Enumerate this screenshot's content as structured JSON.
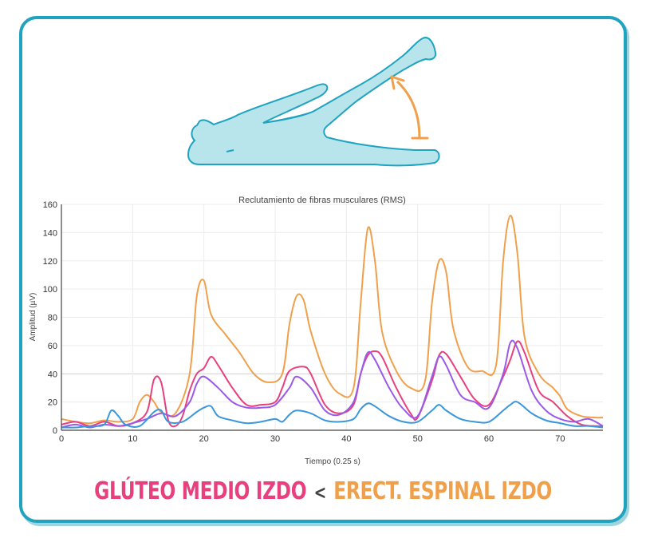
{
  "caption": {
    "left": "GLÚTEO MEDIO IZDO",
    "comparator": "<",
    "right": "ERECT. ESPINAL IZDO"
  },
  "illustration": {
    "icon": "side-lying-leg-raise-figure",
    "body_fill": "#b8e4ec",
    "body_stroke": "#1fa3bf",
    "arrow_color": "#f0a04b"
  },
  "chart_data": {
    "type": "line",
    "title": "Reclutamiento de fibras musculares (RMS)",
    "xlabel": "Tiempo (0.25 s)",
    "ylabel": "Amplitud (µV)",
    "xlim": [
      0,
      76
    ],
    "ylim": [
      0,
      160
    ],
    "xticks": [
      0,
      10,
      20,
      30,
      40,
      50,
      60,
      70
    ],
    "yticks": [
      0,
      20,
      40,
      60,
      80,
      100,
      120,
      140,
      160
    ],
    "grid": true,
    "series": [
      {
        "color": "#f0a04b",
        "points": [
          [
            0,
            8
          ],
          [
            2,
            6
          ],
          [
            4,
            5
          ],
          [
            6,
            7
          ],
          [
            8,
            6
          ],
          [
            10,
            8
          ],
          [
            11,
            20
          ],
          [
            12,
            25
          ],
          [
            13,
            20
          ],
          [
            14,
            13
          ],
          [
            16,
            12
          ],
          [
            18,
            40
          ],
          [
            19,
            95
          ],
          [
            20,
            106
          ],
          [
            21,
            82
          ],
          [
            23,
            68
          ],
          [
            25,
            55
          ],
          [
            27,
            40
          ],
          [
            29,
            34
          ],
          [
            31,
            40
          ],
          [
            32,
            75
          ],
          [
            33,
            95
          ],
          [
            34,
            92
          ],
          [
            35,
            70
          ],
          [
            37,
            40
          ],
          [
            39,
            26
          ],
          [
            41,
            30
          ],
          [
            42,
            90
          ],
          [
            43,
            143
          ],
          [
            44,
            120
          ],
          [
            45,
            70
          ],
          [
            47,
            42
          ],
          [
            49,
            30
          ],
          [
            51,
            34
          ],
          [
            52,
            90
          ],
          [
            53,
            120
          ],
          [
            54,
            112
          ],
          [
            55,
            72
          ],
          [
            57,
            45
          ],
          [
            59,
            42
          ],
          [
            61,
            46
          ],
          [
            62,
            120
          ],
          [
            63,
            152
          ],
          [
            64,
            125
          ],
          [
            65,
            66
          ],
          [
            67,
            40
          ],
          [
            69,
            30
          ],
          [
            70,
            24
          ],
          [
            71,
            15
          ],
          [
            73,
            10
          ],
          [
            75,
            9
          ],
          [
            76,
            9
          ]
        ]
      },
      {
        "color": "#e8407e",
        "points": [
          [
            0,
            4
          ],
          [
            2,
            6
          ],
          [
            4,
            3
          ],
          [
            6,
            6
          ],
          [
            8,
            3
          ],
          [
            10,
            5
          ],
          [
            12,
            13
          ],
          [
            13,
            36
          ],
          [
            14,
            34
          ],
          [
            15,
            7
          ],
          [
            16,
            3
          ],
          [
            17,
            10
          ],
          [
            18,
            28
          ],
          [
            19,
            40
          ],
          [
            20,
            44
          ],
          [
            21,
            52
          ],
          [
            22,
            46
          ],
          [
            24,
            30
          ],
          [
            26,
            18
          ],
          [
            28,
            18
          ],
          [
            30,
            20
          ],
          [
            31,
            30
          ],
          [
            32,
            42
          ],
          [
            34,
            45
          ],
          [
            35,
            40
          ],
          [
            37,
            18
          ],
          [
            39,
            12
          ],
          [
            41,
            18
          ],
          [
            42,
            40
          ],
          [
            43,
            53
          ],
          [
            44,
            56
          ],
          [
            45,
            52
          ],
          [
            47,
            30
          ],
          [
            49,
            12
          ],
          [
            50,
            9
          ],
          [
            52,
            35
          ],
          [
            53,
            53
          ],
          [
            54,
            54
          ],
          [
            56,
            38
          ],
          [
            58,
            22
          ],
          [
            60,
            18
          ],
          [
            62,
            38
          ],
          [
            63,
            50
          ],
          [
            64,
            63
          ],
          [
            65,
            55
          ],
          [
            67,
            28
          ],
          [
            69,
            20
          ],
          [
            71,
            10
          ],
          [
            73,
            4
          ],
          [
            75,
            3
          ],
          [
            76,
            3
          ]
        ]
      },
      {
        "color": "#9b59e8",
        "points": [
          [
            0,
            2
          ],
          [
            2,
            4
          ],
          [
            4,
            2
          ],
          [
            6,
            4
          ],
          [
            8,
            3
          ],
          [
            10,
            5
          ],
          [
            12,
            8
          ],
          [
            14,
            12
          ],
          [
            16,
            10
          ],
          [
            18,
            20
          ],
          [
            19,
            33
          ],
          [
            20,
            38
          ],
          [
            22,
            30
          ],
          [
            24,
            20
          ],
          [
            26,
            16
          ],
          [
            28,
            16
          ],
          [
            30,
            18
          ],
          [
            32,
            30
          ],
          [
            33,
            38
          ],
          [
            35,
            30
          ],
          [
            37,
            14
          ],
          [
            39,
            11
          ],
          [
            41,
            20
          ],
          [
            42,
            40
          ],
          [
            43,
            55
          ],
          [
            44,
            50
          ],
          [
            46,
            30
          ],
          [
            48,
            15
          ],
          [
            50,
            10
          ],
          [
            52,
            38
          ],
          [
            53,
            52
          ],
          [
            54,
            46
          ],
          [
            56,
            25
          ],
          [
            58,
            20
          ],
          [
            60,
            16
          ],
          [
            62,
            40
          ],
          [
            63,
            62
          ],
          [
            64,
            58
          ],
          [
            66,
            28
          ],
          [
            68,
            14
          ],
          [
            70,
            8
          ],
          [
            72,
            6
          ],
          [
            74,
            8
          ],
          [
            76,
            3
          ]
        ]
      },
      {
        "color": "#3a97dc",
        "points": [
          [
            0,
            2
          ],
          [
            2,
            2
          ],
          [
            4,
            3
          ],
          [
            6,
            4
          ],
          [
            7,
            14
          ],
          [
            8,
            10
          ],
          [
            9,
            4
          ],
          [
            11,
            3
          ],
          [
            13,
            13
          ],
          [
            14,
            14
          ],
          [
            15,
            6
          ],
          [
            17,
            6
          ],
          [
            19,
            13
          ],
          [
            20,
            16
          ],
          [
            21,
            17
          ],
          [
            22,
            10
          ],
          [
            24,
            7
          ],
          [
            26,
            5
          ],
          [
            28,
            6
          ],
          [
            30,
            8
          ],
          [
            31,
            6
          ],
          [
            32,
            11
          ],
          [
            33,
            14
          ],
          [
            35,
            12
          ],
          [
            37,
            7
          ],
          [
            39,
            6
          ],
          [
            41,
            8
          ],
          [
            42,
            15
          ],
          [
            43,
            19
          ],
          [
            44,
            17
          ],
          [
            46,
            10
          ],
          [
            48,
            6
          ],
          [
            50,
            6
          ],
          [
            52,
            14
          ],
          [
            53,
            18
          ],
          [
            54,
            14
          ],
          [
            56,
            8
          ],
          [
            58,
            6
          ],
          [
            60,
            6
          ],
          [
            62,
            14
          ],
          [
            63,
            18
          ],
          [
            64,
            20
          ],
          [
            66,
            12
          ],
          [
            68,
            7
          ],
          [
            70,
            5
          ],
          [
            72,
            3
          ],
          [
            74,
            3
          ],
          [
            76,
            2
          ]
        ]
      }
    ]
  }
}
